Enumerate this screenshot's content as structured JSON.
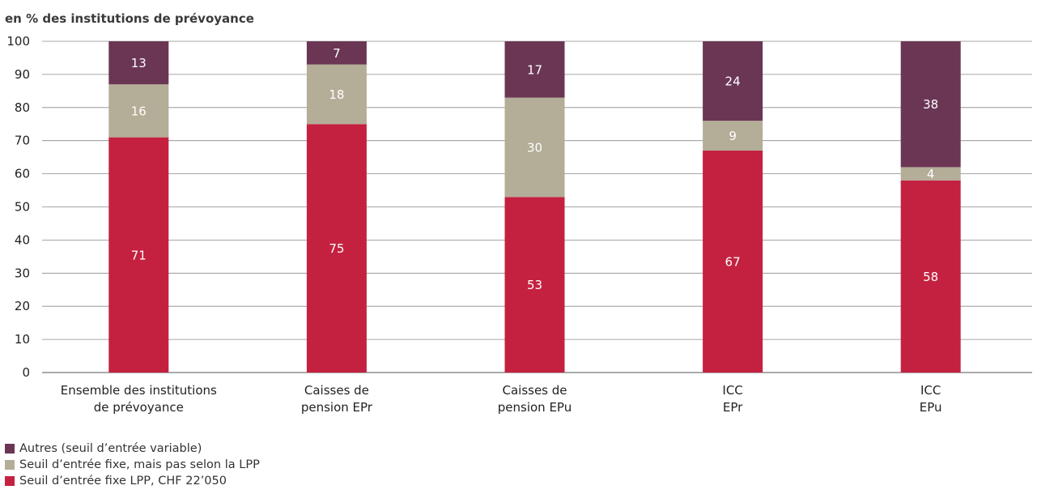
{
  "chart_data": {
    "type": "bar",
    "stacked": true,
    "title": "en % des institutions de prévoyance",
    "xlabel": "",
    "ylabel": "",
    "ylim": [
      0,
      100
    ],
    "yticks": [
      0,
      10,
      20,
      30,
      40,
      50,
      60,
      70,
      80,
      90,
      100
    ],
    "grid": true,
    "legend_position": "bottom-left",
    "categories": [
      [
        "Ensemble des institutions",
        "de prévoyance"
      ],
      [
        "Caisses de",
        "pension EPr"
      ],
      [
        "Caisses de",
        "pension EPu"
      ],
      [
        "ICC",
        "EPr"
      ],
      [
        "ICC",
        "EPu"
      ]
    ],
    "series": [
      {
        "name": "Seuil d’entrée fixe LPP, CHF 22’050",
        "color": "#c42141",
        "values": [
          71,
          75,
          53,
          67,
          58
        ]
      },
      {
        "name": "Seuil d’entrée fixe, mais pas selon la LPP",
        "color": "#b4ad97",
        "values": [
          16,
          18,
          30,
          9,
          4
        ]
      },
      {
        "name": "Autres (seuil d’entrée variable)",
        "color": "#6b3654",
        "values": [
          13,
          7,
          17,
          24,
          38
        ]
      }
    ]
  },
  "legend": [
    {
      "label": "Autres (seuil d’entrée variable)",
      "color": "#6b3654"
    },
    {
      "label": "Seuil d’entrée fixe, mais pas selon la LPP",
      "color": "#b4ad97"
    },
    {
      "label": "Seuil d’entrée fixe LPP, CHF 22’050",
      "color": "#c42141"
    }
  ]
}
